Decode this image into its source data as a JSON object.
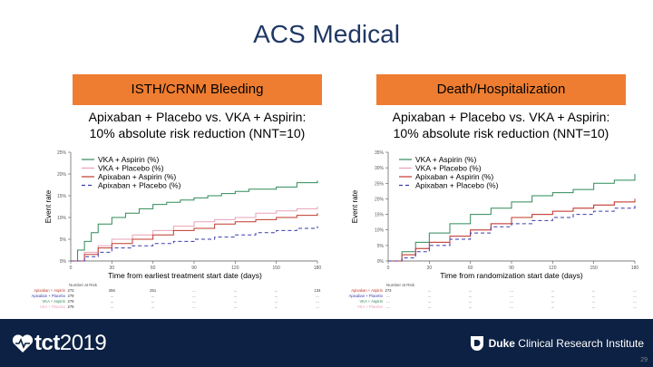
{
  "title": "ACS Medical",
  "panels": [
    {
      "header": "ISTH/CRNM Bleeding",
      "subtitle_line1": "Apixaban + Placebo vs. VKA + Aspirin:",
      "subtitle_line2": "10% absolute risk reduction (NNT=10)"
    },
    {
      "header": "Death/Hospitalization",
      "subtitle_line1": "Apixaban + Placebo vs. VKA + Aspirin:",
      "subtitle_line2": "10% absolute risk reduction (NNT=10)"
    }
  ],
  "chart_data": [
    {
      "type": "line",
      "title": "ISTH/CRNM Bleeding",
      "xlabel": "Time from earliest treatment start date (days)",
      "ylabel": "Event rate",
      "xticks": [
        "0",
        "30",
        "60",
        "90",
        "120",
        "150",
        "180"
      ],
      "yticks": [
        "0%",
        "5%",
        "10%",
        "15%",
        "20%",
        "25%"
      ],
      "xlim": [
        0,
        180
      ],
      "ylim": [
        0,
        25
      ],
      "legend_position": "top-left",
      "series": [
        {
          "name": "VKA + Aspirin (%)",
          "color": "#2e8b57",
          "dash": "",
          "x": [
            0,
            5,
            10,
            15,
            20,
            30,
            40,
            50,
            60,
            70,
            80,
            90,
            100,
            110,
            120,
            130,
            150,
            165,
            180
          ],
          "y": [
            0,
            2.5,
            4.5,
            6.5,
            8.5,
            10,
            11,
            12,
            13,
            13.5,
            14,
            14.5,
            15,
            15.5,
            16,
            16.5,
            17,
            18,
            18.5
          ]
        },
        {
          "name": "VKA + Placebo (%)",
          "color": "#e8a0b8",
          "dash": "",
          "x": [
            0,
            10,
            20,
            30,
            45,
            60,
            75,
            90,
            105,
            120,
            135,
            150,
            165,
            180
          ],
          "y": [
            0,
            2,
            3.5,
            5,
            6,
            7,
            8,
            9,
            9.5,
            10,
            11,
            11.5,
            12,
            12.5
          ]
        },
        {
          "name": "Apixaban + Aspirin (%)",
          "color": "#c0392b",
          "dash": "",
          "x": [
            0,
            10,
            20,
            30,
            45,
            60,
            75,
            90,
            105,
            120,
            135,
            150,
            165,
            180
          ],
          "y": [
            0,
            1.5,
            3,
            4,
            5,
            6,
            7,
            7.5,
            8.5,
            9,
            9.5,
            10,
            10.5,
            11
          ]
        },
        {
          "name": "Apixaban + Placebo (%)",
          "color": "#3a3aa8",
          "dash": "4,3",
          "x": [
            0,
            10,
            20,
            30,
            45,
            60,
            75,
            90,
            105,
            120,
            135,
            150,
            165,
            180
          ],
          "y": [
            0,
            1,
            2,
            3,
            3.5,
            4,
            4.5,
            5,
            5.5,
            6,
            6.5,
            7,
            7.5,
            8
          ]
        }
      ]
    },
    {
      "type": "line",
      "title": "Death/Hospitalization",
      "xlabel": "Time from randomization start date (days)",
      "ylabel": "Event rate",
      "xticks": [
        "0",
        "30",
        "60",
        "90",
        "120",
        "150",
        "180"
      ],
      "yticks": [
        "0%",
        "5%",
        "10%",
        "15%",
        "20%",
        "25%",
        "30%",
        "35%"
      ],
      "xlim": [
        0,
        180
      ],
      "ylim": [
        0,
        35
      ],
      "legend_position": "top-left",
      "series": [
        {
          "name": "VKA + Aspirin (%)",
          "color": "#2e8b57",
          "dash": "",
          "x": [
            0,
            10,
            20,
            30,
            45,
            60,
            75,
            90,
            105,
            120,
            135,
            150,
            165,
            180
          ],
          "y": [
            0,
            3,
            6,
            9,
            12,
            15,
            17,
            19,
            21,
            22,
            23,
            25,
            26,
            28
          ]
        },
        {
          "name": "VKA + Placebo (%)",
          "color": "#e8a0b8",
          "dash": "",
          "x": [
            0,
            10,
            20,
            30,
            45,
            60,
            75,
            90,
            105,
            120,
            135,
            150,
            165,
            180
          ],
          "y": [
            0,
            2,
            4,
            6,
            8,
            10,
            12,
            14,
            15,
            16,
            17,
            18,
            19,
            20
          ]
        },
        {
          "name": "Apixaban + Aspirin (%)",
          "color": "#c0392b",
          "dash": "",
          "x": [
            0,
            10,
            20,
            30,
            45,
            60,
            75,
            90,
            105,
            120,
            135,
            150,
            165,
            180
          ],
          "y": [
            0,
            2,
            4,
            6,
            8,
            10,
            12,
            14,
            15,
            16,
            17,
            18,
            19,
            20
          ]
        },
        {
          "name": "Apixaban + Placebo (%)",
          "color": "#3a3aa8",
          "dash": "4,3",
          "x": [
            0,
            10,
            20,
            30,
            45,
            60,
            75,
            90,
            105,
            120,
            135,
            150,
            165,
            180
          ],
          "y": [
            0,
            1,
            3,
            5,
            7,
            9,
            11,
            12,
            13,
            14,
            15,
            16,
            17,
            18
          ]
        }
      ]
    }
  ],
  "risk_tables": [
    {
      "label": "Number at Risk",
      "rows": [
        {
          "name": "Apixaban + Aspirin",
          "color": "#c0392b",
          "values": [
            "273",
            "256",
            "251",
            "...",
            "...",
            "...",
            "134"
          ]
        },
        {
          "name": "Apixaban + Placebo",
          "color": "#3a3aa8",
          "values": [
            "279",
            "...",
            "...",
            "...",
            "...",
            "...",
            "..."
          ]
        },
        {
          "name": "VKA + Aspirin",
          "color": "#2e8b57",
          "values": [
            "279",
            "...",
            "...",
            "...",
            "...",
            "...",
            "..."
          ]
        },
        {
          "name": "VKA + Placebo",
          "color": "#e8a0b8",
          "values": [
            "279",
            "...",
            "...",
            "...",
            "...",
            "...",
            "..."
          ]
        }
      ]
    },
    {
      "label": "Number at Risk",
      "rows": [
        {
          "name": "Apixaban + Aspirin",
          "color": "#c0392b",
          "values": [
            "273",
            "...",
            "...",
            "...",
            "...",
            "...",
            "..."
          ]
        },
        {
          "name": "Apixaban + Placebo",
          "color": "#3a3aa8",
          "values": [
            "...",
            "...",
            "...",
            "...",
            "...",
            "...",
            "..."
          ]
        },
        {
          "name": "VKA + Aspirin",
          "color": "#2e8b57",
          "values": [
            "...",
            "...",
            "...",
            "...",
            "...",
            "...",
            "..."
          ]
        },
        {
          "name": "VKA + Placebo",
          "color": "#e8a0b8",
          "values": [
            "...",
            "...",
            "...",
            "...",
            "...",
            "...",
            "..."
          ]
        }
      ]
    }
  ],
  "footer": {
    "tct_brand": "tct",
    "tct_year": "2019",
    "duke_bold": "Duke",
    "duke_rest": " Clinical Research Institute"
  },
  "page_number": "29",
  "colors": {
    "header_bg": "#ee7d31",
    "footer_bg": "#0c2143",
    "title": "#1f3864"
  }
}
